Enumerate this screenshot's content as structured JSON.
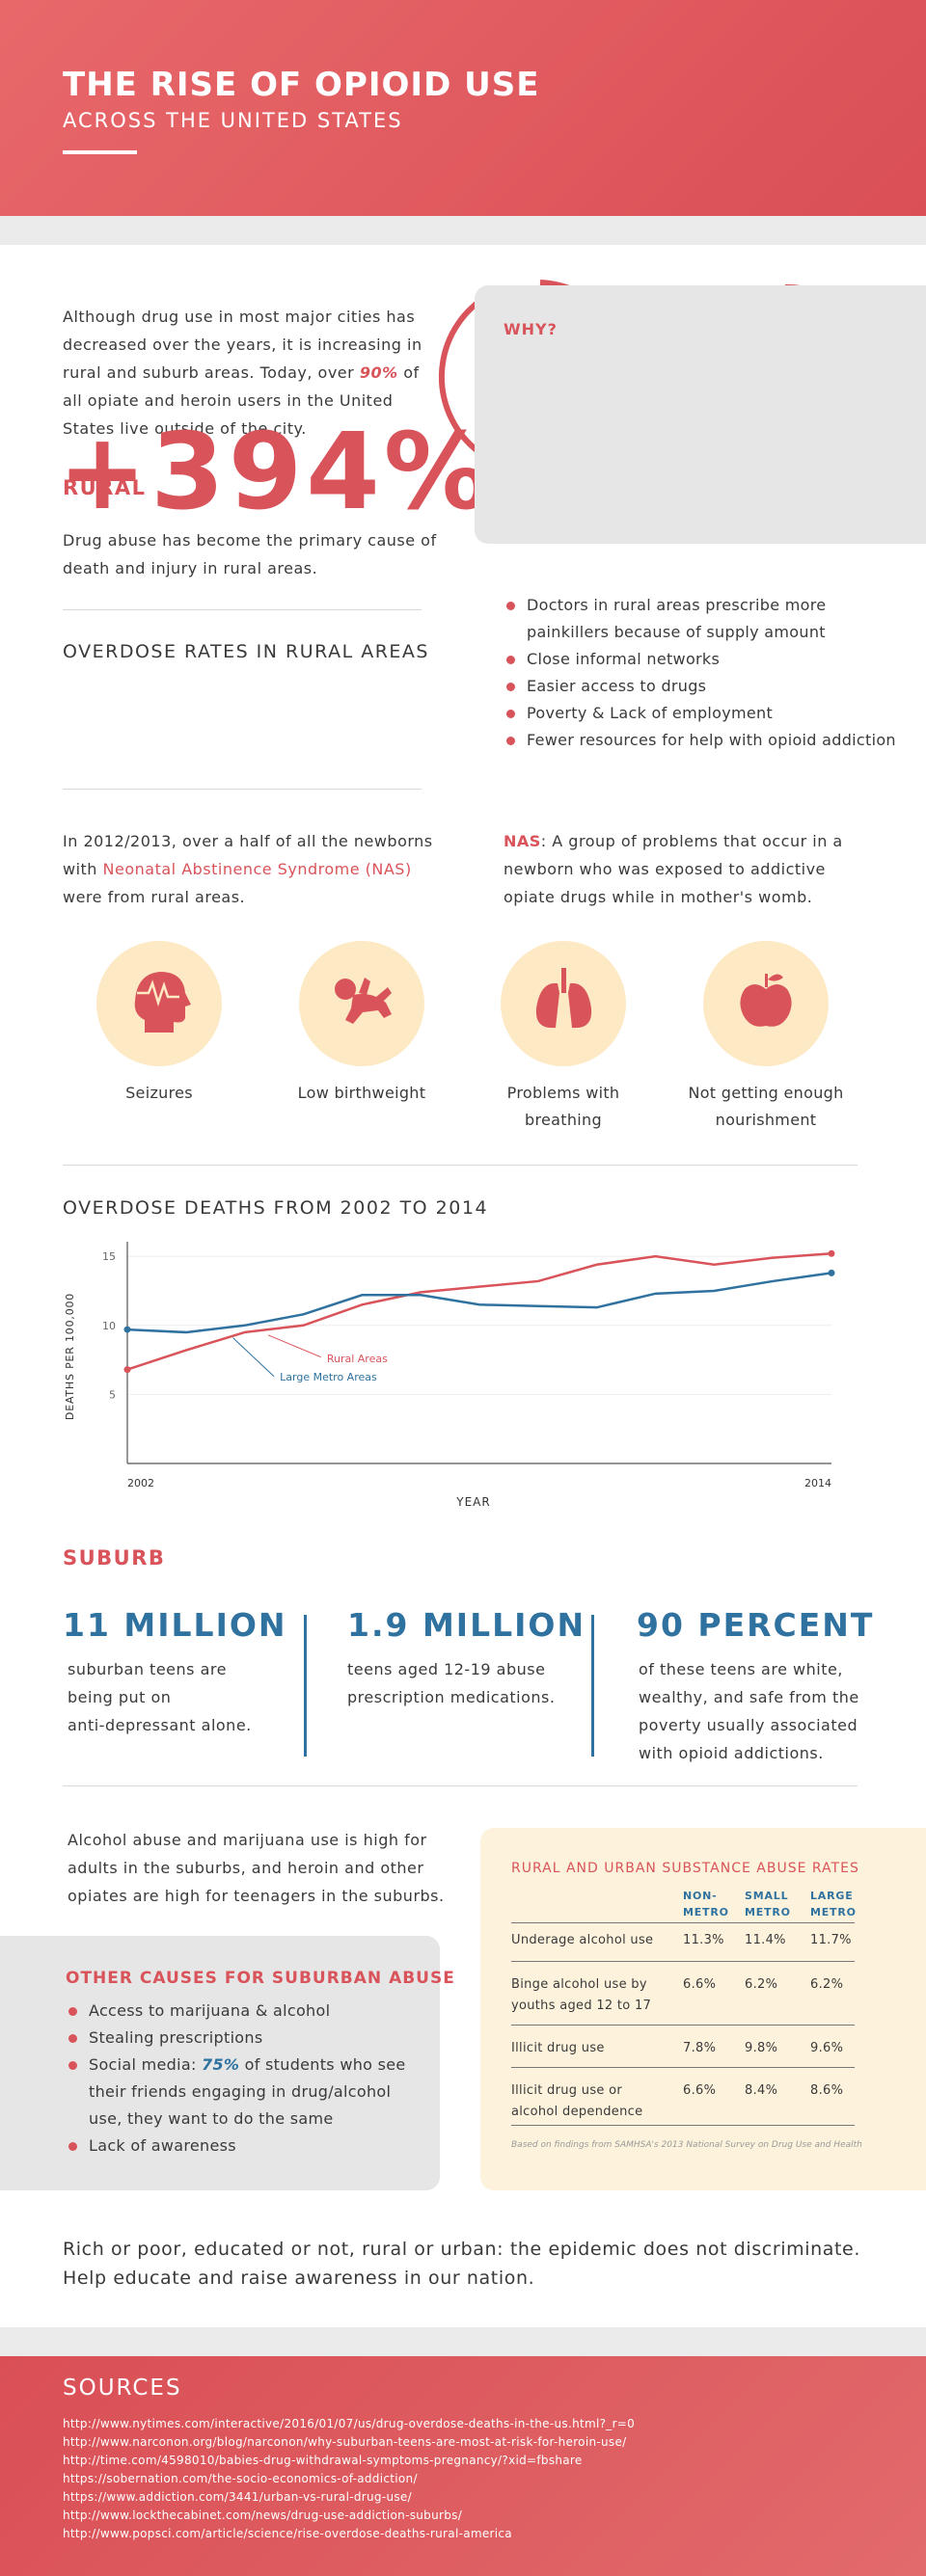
{
  "header": {
    "title": "THE RISE OF OPIOID USE",
    "subtitle": "ACROSS THE UNITED STATES"
  },
  "intro": {
    "line1": "Although drug use in most major cities has",
    "line2": "decreased over the years, it is increasing in",
    "line3_pre": "rural and suburb areas. Today, over ",
    "line3_pct": "90%",
    "line3_post": " of",
    "line4": "all opiate and heroin users in the United",
    "line5": "States live outside of the city."
  },
  "rural": {
    "heading": "RURAL",
    "line1": "Drug abuse has become the primary cause of",
    "line2": "death and injury in rural areas.",
    "overdose_heading": "OVERDOSE RATES IN RURAL AREAS",
    "overdose_value": "+394%",
    "why_title": "WHY?",
    "why_items": [
      "Doctors in rural areas prescribe more",
      "painkillers because of supply amount",
      "Close informal networks",
      "Easier access to drugs",
      "Poverty & Lack of employment",
      "Fewer resources for help with opioid addiction"
    ],
    "nas_line1": "In 2012/2013, over a half of all the newborns",
    "nas_line2_pre": "with ",
    "nas_line2_link": "Neonatal Abstinence Syndrome (NAS)",
    "nas_line3": "were from rural areas.",
    "nas_def_term": "NAS",
    "nas_def_line1": ": A group of problems that occur in a",
    "nas_def_line2": "newborn who was exposed to addictive",
    "nas_def_line3": "opiate drugs while in mother's womb."
  },
  "symptoms": [
    {
      "icon": "head-seizure-icon",
      "line1": "Seizures",
      "line2": ""
    },
    {
      "icon": "baby-icon",
      "line1": "Low birthweight",
      "line2": ""
    },
    {
      "icon": "lungs-icon",
      "line1": "Problems with",
      "line2": "breathing"
    },
    {
      "icon": "apple-icon",
      "line1": "Not getting enough",
      "line2": "nourishment"
    }
  ],
  "chart_data": {
    "type": "line",
    "title": "OVERDOSE DEATHS FROM 2002 TO 2014",
    "xlabel": "YEAR",
    "ylabel": "DEATHS PER 100,000",
    "x": [
      2002,
      2003,
      2004,
      2005,
      2006,
      2007,
      2008,
      2009,
      2010,
      2011,
      2012,
      2013,
      2014
    ],
    "x_tick_labels": [
      "2002",
      "2014"
    ],
    "y_ticks": [
      5,
      10,
      15
    ],
    "ylim": [
      0,
      15.5
    ],
    "xlim": [
      2002,
      2014
    ],
    "grid": true,
    "series": [
      {
        "name": "Rural Areas",
        "color": "#d9545a",
        "values": [
          6.8,
          8.2,
          9.5,
          10.0,
          11.5,
          12.4,
          12.8,
          13.2,
          14.4,
          15.0,
          14.4,
          14.9,
          15.2
        ]
      },
      {
        "name": "Large Metro Areas",
        "color": "#2f72a0",
        "values": [
          9.7,
          9.5,
          10.0,
          10.8,
          12.2,
          12.2,
          11.5,
          11.4,
          11.3,
          12.3,
          12.5,
          13.2,
          13.8
        ]
      }
    ]
  },
  "suburb": {
    "heading": "SUBURB",
    "stats": [
      {
        "value": "11 MILLION",
        "lines": [
          "suburban teens are",
          "being put on",
          "anti-depressant alone."
        ]
      },
      {
        "value": "1.9 MILLION",
        "lines": [
          "teens aged 12-19 abuse",
          "prescription medications."
        ]
      },
      {
        "value": "90 PERCENT",
        "lines": [
          "of these teens are white,",
          "wealthy, and safe from the",
          "poverty usually associated",
          "with opioid addictions."
        ]
      }
    ],
    "para_line1": "Alcohol abuse and marijuana use is high for",
    "para_line2": "adults in the suburbs, and heroin and other",
    "para_line3": "opiates are high for teenagers in the suburbs.",
    "other_title": "OTHER CAUSES FOR SUBURBAN ABUSE",
    "other_items": [
      {
        "pre": "Access to marijuana & alcohol",
        "em": "",
        "post": ""
      },
      {
        "pre": "Stealing prescriptions",
        "em": "",
        "post": ""
      },
      {
        "pre": "Social media: ",
        "em": "75%",
        "post": " of students who see"
      },
      {
        "pre": "their friends engaging in drug/alcohol",
        "em": "",
        "post": "",
        "cont": true
      },
      {
        "pre": "use, they want to do the same",
        "em": "",
        "post": "",
        "cont": true
      },
      {
        "pre": "Lack of awareness",
        "em": "",
        "post": ""
      }
    ]
  },
  "table": {
    "title": "RURAL AND URBAN SUBSTANCE ABUSE RATES",
    "headers": [
      [
        "NON-",
        "METRO"
      ],
      [
        "SMALL",
        "METRO"
      ],
      [
        "LARGE",
        "METRO"
      ]
    ],
    "rows": [
      {
        "label": [
          "Underage alcohol use"
        ],
        "values": [
          "11.3%",
          "11.4%",
          "11.7%"
        ]
      },
      {
        "label": [
          "Binge alcohol use by",
          "youths aged 12 to 17"
        ],
        "values": [
          "6.6%",
          "6.2%",
          "6.2%"
        ]
      },
      {
        "label": [
          "Illicit drug use"
        ],
        "values": [
          "7.8%",
          "9.8%",
          "9.6%"
        ]
      },
      {
        "label": [
          "Illicit drug use or",
          "alcohol dependence"
        ],
        "values": [
          "6.6%",
          "8.4%",
          "8.6%"
        ]
      }
    ],
    "note": "Based on findings from SAMHSA's 2013 National Survey on Drug Use and Health"
  },
  "closing": {
    "line1": "Rich or poor, educated or not, rural or urban: the epidemic does not discriminate.",
    "line2": "Help educate and raise awareness in our nation."
  },
  "sources": {
    "title": "SOURCES",
    "links": [
      "http://www.nytimes.com/interactive/2016/01/07/us/drug-overdose-deaths-in-the-us.html?_r=0",
      "http://www.narconon.org/blog/narconon/why-suburban-teens-are-most-at-risk-for-heroin-use/",
      "http://time.com/4598010/babies-drug-withdrawal-symptoms-pregnancy/?xid=fbshare",
      "https://sobernation.com/the-socio-economics-of-addiction/",
      "https://www.addiction.com/3441/urban-vs-rural-drug-use/",
      "http://www.lockthecabinet.com/news/drug-use-addiction-suburbs/",
      "http://www.popsci.com/article/science/rise-overdose-deaths-rural-america"
    ]
  },
  "colors": {
    "accent_red": "#d9545a",
    "accent_blue": "#2f72a0",
    "cream": "#fde9c3",
    "grey_box": "#e6e6e6"
  }
}
